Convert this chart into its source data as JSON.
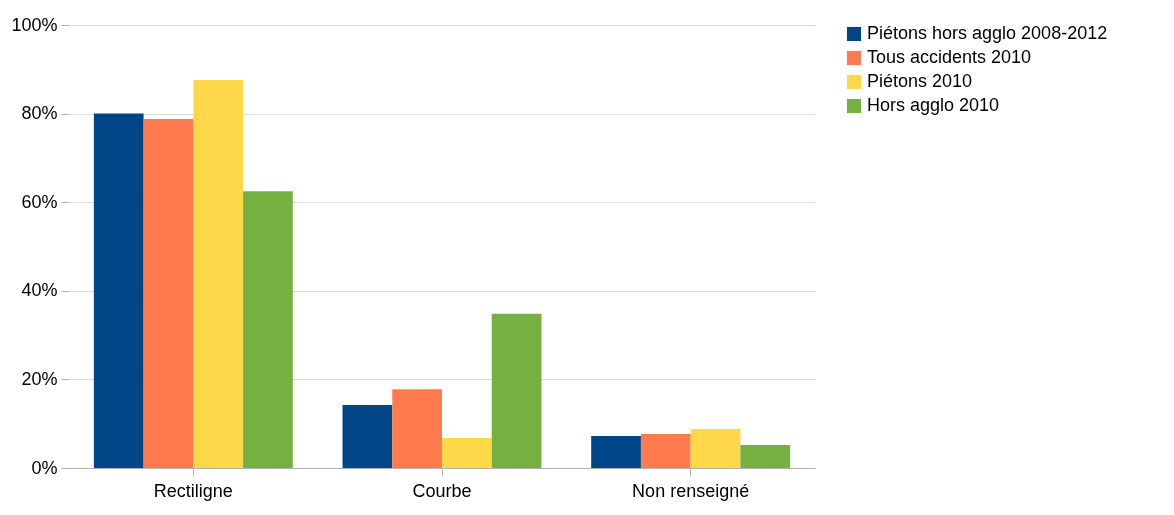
{
  "chart_data": {
    "type": "bar",
    "categories": [
      "Rectiligne",
      "Courbe",
      "Non renseigné"
    ],
    "series": [
      {
        "name": "Piétons hors agglo 2008-2012",
        "color": "#004586",
        "values": [
          80,
          14.2,
          7.2
        ]
      },
      {
        "name": "Tous accidents 2010",
        "color": "#ff7b4f",
        "values": [
          78.8,
          17.8,
          7.7
        ]
      },
      {
        "name": "Piétons 2010",
        "color": "#ffd84a",
        "values": [
          87.6,
          6.8,
          8.8
        ]
      },
      {
        "name": "Hors agglo 2010",
        "color": "#76b041",
        "values": [
          62.5,
          34.8,
          5.2
        ]
      }
    ],
    "ylim": [
      0,
      100
    ],
    "yticks": [
      {
        "value": 0,
        "label": "0%"
      },
      {
        "value": 20,
        "label": "20%"
      },
      {
        "value": 40,
        "label": "40%"
      },
      {
        "value": 60,
        "label": "60%"
      },
      {
        "value": 80,
        "label": "80%"
      },
      {
        "value": 100,
        "label": "100%"
      }
    ],
    "grid": "y",
    "legend": "right"
  }
}
